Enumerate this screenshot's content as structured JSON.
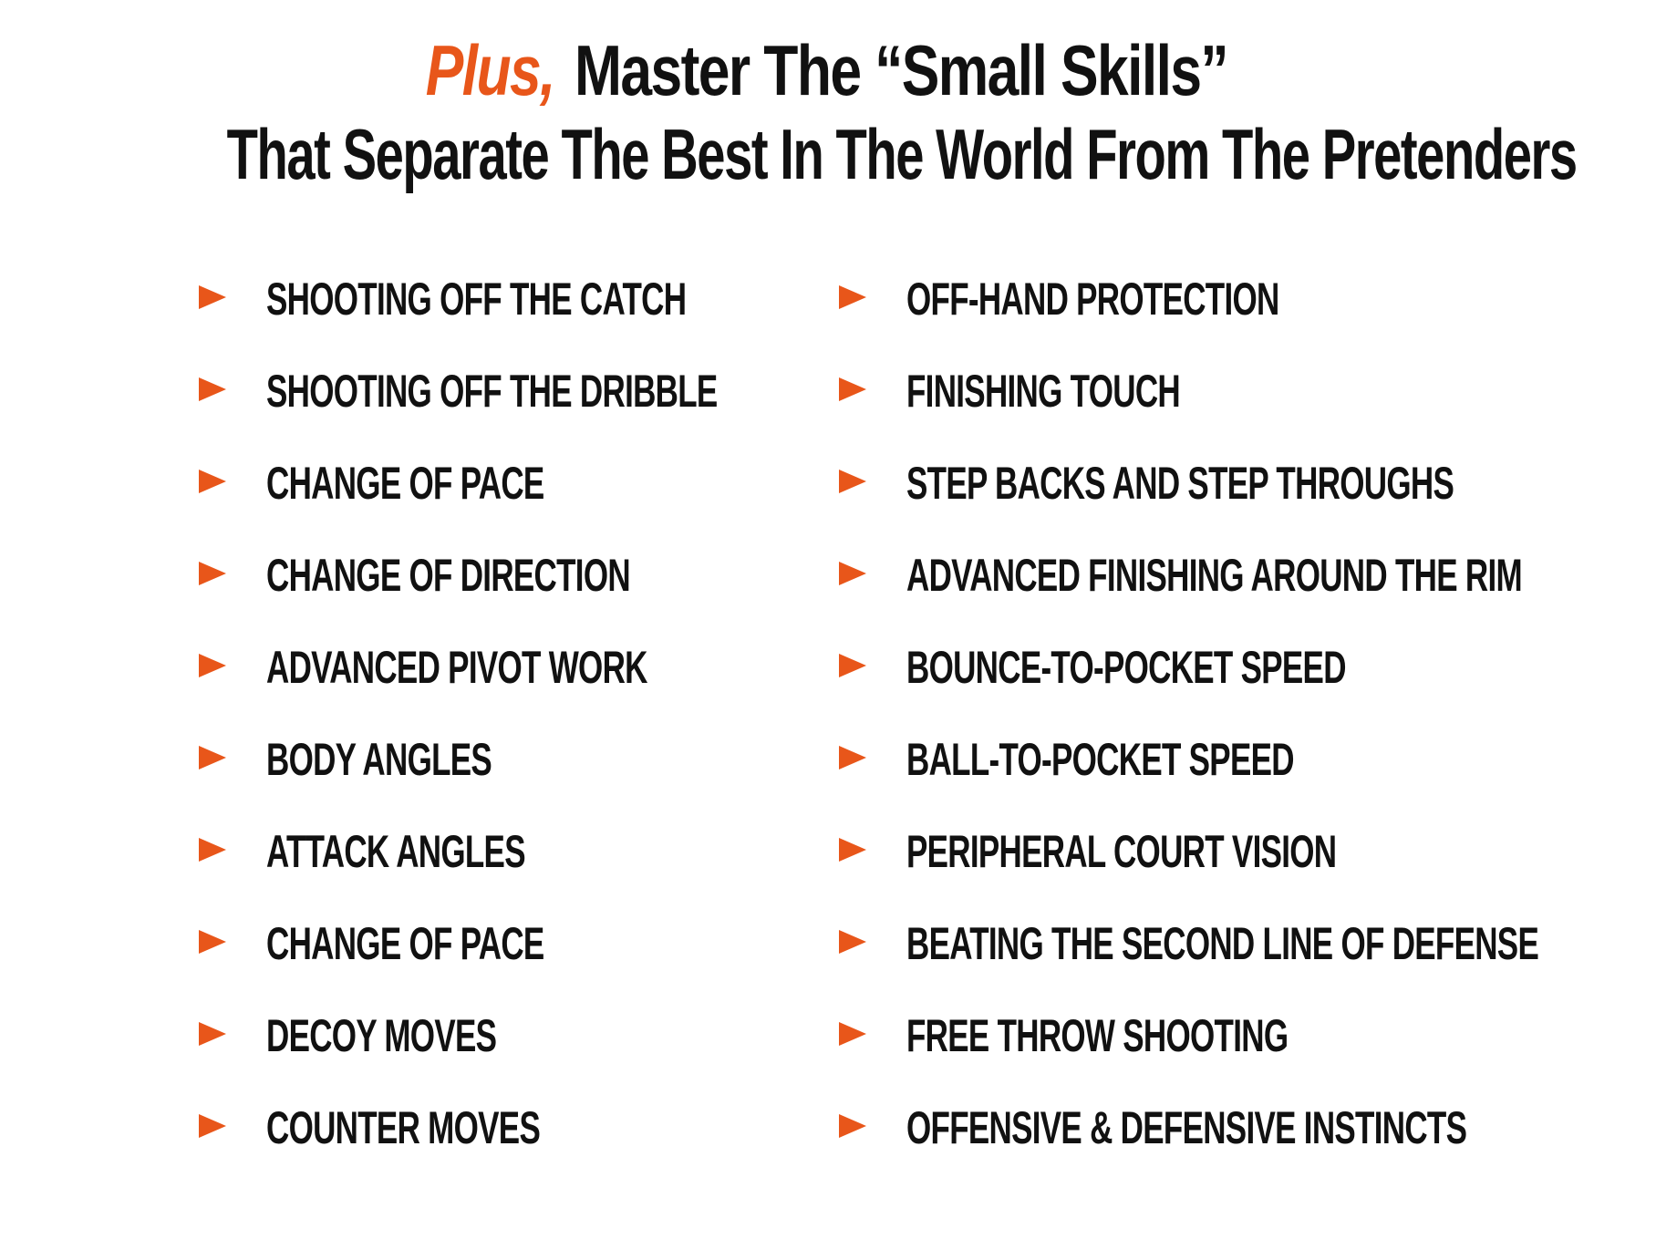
{
  "heading": {
    "accent": "Plus,",
    "line1": "Master The “Small Skills”",
    "line2": "That Separate The Best In The World From The Pretenders"
  },
  "colors": {
    "accent": "#e8561a",
    "text": "#111111",
    "background": "#ffffff"
  },
  "bullet_icon": "orange-triangle-arrow-icon",
  "skills": {
    "left": [
      "SHOOTING OFF THE CATCH",
      "SHOOTING OFF THE DRIBBLE",
      "CHANGE OF PACE",
      "CHANGE OF DIRECTION",
      "ADVANCED PIVOT WORK",
      "BODY ANGLES",
      "ATTACK ANGLES",
      "CHANGE OF PACE",
      "DECOY MOVES",
      "COUNTER MOVES"
    ],
    "right": [
      "OFF-HAND PROTECTION",
      "FINISHING TOUCH",
      "STEP BACKS AND STEP THROUGHS",
      "ADVANCED FINISHING AROUND THE RIM",
      "BOUNCE-TO-POCKET SPEED",
      "BALL-TO-POCKET SPEED",
      "PERIPHERAL COURT VISION",
      "BEATING THE SECOND LINE OF DEFENSE",
      "FREE THROW SHOOTING",
      "OFFENSIVE & DEFENSIVE INSTINCTS"
    ]
  }
}
